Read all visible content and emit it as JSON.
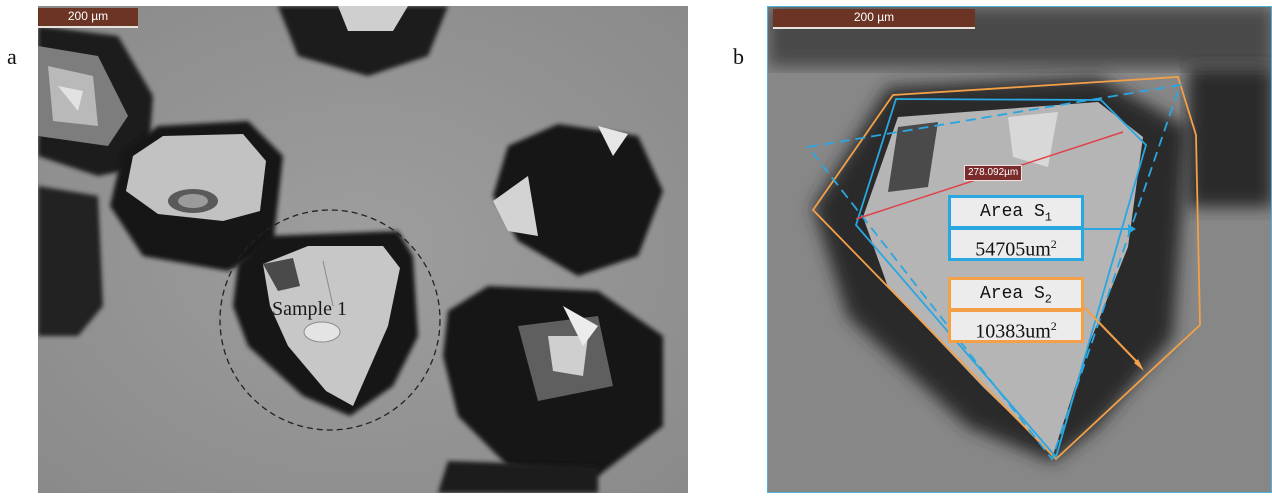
{
  "figure": {
    "panel_a": {
      "letter": "a",
      "scale_bar": "200 µm",
      "sample_label": "Sample 1"
    },
    "panel_b": {
      "letter": "b",
      "scale_bar": "200 µm",
      "measurement": "278.092µm",
      "area_s1_title": "Area S",
      "area_s1_sub": "1",
      "area_s1_value": "54705um",
      "area_s1_sup": "2",
      "area_s2_title": "Area S",
      "area_s2_sub": "2",
      "area_s2_value": "10383um",
      "area_s2_sup": "2"
    },
    "colors": {
      "outline_blue": "#2aa6e0",
      "outline_orange": "#f4a048",
      "measure_line": "#e0424a",
      "scale_bar": "#6b3424"
    }
  }
}
